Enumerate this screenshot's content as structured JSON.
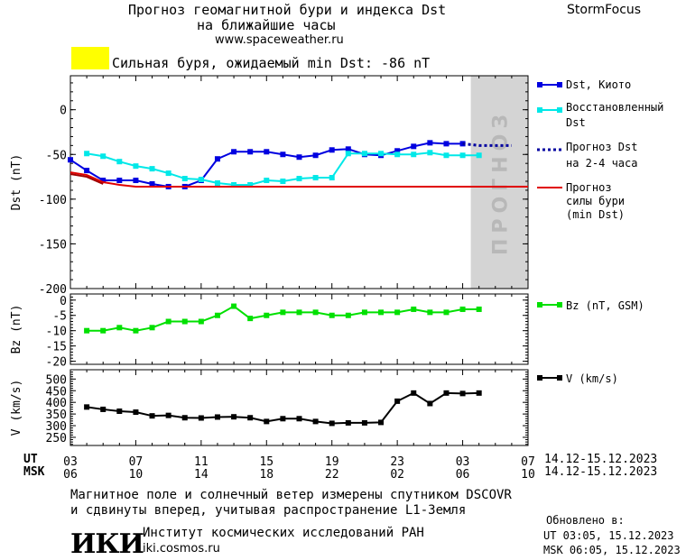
{
  "header": {
    "title_line1": "Прогноз геомагнитной бури и индекса Dst",
    "title_line2": "на ближайшие часы",
    "url": "www.spaceweather.ru",
    "brand": "StormFocus"
  },
  "storm_banner": {
    "text": "Сильная буря, ожидаемый min Dst: -86 nT",
    "color": "#ffff00"
  },
  "forecast_zone_label": "ПРОГНОЗ",
  "legend": {
    "dst_kyoto": "Dst, Киото",
    "restored_1": "Восстановленный",
    "restored_2": "Dst",
    "forecast_1": "Прогноз Dst",
    "forecast_2": "на 2-4 часа",
    "storm_1": "Прогноз",
    "storm_2": "силы бури",
    "storm_3": "(min Dst)",
    "bz": "Bz (nT, GSM)",
    "v": "V (km/s)"
  },
  "time_axis": {
    "ut_label": "UT",
    "msk_label": "MSK",
    "ut_ticks": [
      "03",
      "07",
      "11",
      "15",
      "19",
      "23",
      "03",
      "07"
    ],
    "msk_ticks": [
      "06",
      "10",
      "14",
      "18",
      "22",
      "02",
      "06",
      "10"
    ],
    "ut_range": "14.12-15.12.2023",
    "msk_range": "14.12-15.12.2023"
  },
  "footer": {
    "note_line1": "Магнитное поле и солнечный ветер измерены спутником DSCOVR",
    "note_line2": "и сдвинуты вперед, учитывая распространение L1-Земля",
    "logo_text": "ИКИ",
    "institute": "Институт космических исследований РАН",
    "institute_url": "iki.cosmos.ru",
    "updated_label": "Обновлено в:",
    "updated_ut": "UT  03:05, 15.12.2023",
    "updated_msk": "MSK 06:05, 15.12.2023"
  },
  "chart_data": [
    {
      "type": "line",
      "ylabel": "Dst (nT)",
      "ylim": [
        -200,
        38
      ],
      "yticks": [
        0,
        -50,
        -100,
        -150,
        -200
      ],
      "xlim": [
        0,
        28
      ],
      "forecast_region": [
        24.5,
        28
      ],
      "series": [
        {
          "name": "Dst, Киото",
          "color": "#0000e0",
          "x": [
            0,
            1,
            2,
            3,
            4,
            5,
            6,
            7,
            8,
            9,
            10,
            11,
            12,
            13,
            14,
            15,
            16,
            17,
            18,
            19,
            20,
            21,
            22,
            23,
            24
          ],
          "values": [
            -56,
            -68,
            -79,
            -79,
            -79,
            -83,
            -86,
            -86,
            -79,
            -55,
            -47,
            -47,
            -47,
            -50,
            -53,
            -51,
            -45,
            -44,
            -50,
            -51,
            -46,
            -41,
            -37,
            -38,
            -38
          ]
        },
        {
          "name": "Восстановленный Dst",
          "color": "#00e8e8",
          "x": [
            1,
            2,
            3,
            4,
            5,
            6,
            7,
            8,
            9,
            10,
            11,
            12,
            13,
            14,
            15,
            16,
            17,
            18,
            19,
            20,
            21,
            22,
            23,
            24,
            25
          ],
          "values": [
            -49,
            -52,
            -58,
            -63,
            -66,
            -71,
            -77,
            -78,
            -82,
            -84,
            -84,
            -79,
            -80,
            -77,
            -76,
            -76,
            -49,
            -49,
            -49,
            -50,
            -50,
            -48,
            -51,
            -51,
            -51
          ]
        },
        {
          "name": "Прогноз Dst на 2-4 часа",
          "color": "#0000a0",
          "dashed": true,
          "x": [
            24,
            25,
            26,
            27
          ],
          "values": [
            -38,
            -40,
            -40,
            -40
          ]
        },
        {
          "name": "Прогноз силы бури (min Dst)",
          "color": "#e00000",
          "x": [
            0,
            1,
            2,
            3,
            4,
            28
          ],
          "values": [
            -70,
            -73,
            -81,
            -84,
            -86,
            -86
          ]
        },
        {
          "name": "",
          "color": "#a00000",
          "x": [
            0,
            1,
            2
          ],
          "values": [
            -72,
            -75,
            -83
          ]
        }
      ]
    },
    {
      "type": "line",
      "ylabel": "Bz (nT)",
      "ylim": [
        -21,
        2
      ],
      "yticks": [
        0,
        -5,
        -10,
        -15,
        -20
      ],
      "xlim": [
        0,
        28
      ],
      "series": [
        {
          "name": "Bz (nT, GSM)",
          "color": "#00e000",
          "x": [
            1,
            2,
            3,
            4,
            5,
            6,
            7,
            8,
            9,
            10,
            11,
            12,
            13,
            14,
            15,
            16,
            17,
            18,
            19,
            20,
            21,
            22,
            23,
            24,
            25
          ],
          "values": [
            -10,
            -10,
            -9,
            -10,
            -9,
            -7,
            -7,
            -7,
            -5,
            -2,
            -6,
            -5,
            -4,
            -4,
            -4,
            -5,
            -5,
            -4,
            -4,
            -4,
            -3,
            -4,
            -4,
            -3,
            -3
          ]
        }
      ]
    },
    {
      "type": "line",
      "ylabel": "V (km/s)",
      "ylim": [
        215,
        540
      ],
      "yticks": [
        500,
        450,
        400,
        350,
        300,
        250
      ],
      "xlim": [
        0,
        28
      ],
      "series": [
        {
          "name": "V (km/s)",
          "color": "#000000",
          "x": [
            1,
            2,
            3,
            4,
            5,
            6,
            7,
            8,
            9,
            10,
            11,
            12,
            13,
            14,
            15,
            16,
            17,
            18,
            19,
            20,
            21,
            22,
            23,
            24,
            25
          ],
          "values": [
            380,
            370,
            362,
            358,
            342,
            344,
            334,
            333,
            337,
            338,
            334,
            318,
            330,
            330,
            318,
            310,
            312,
            312,
            314,
            405,
            440,
            395,
            440,
            438,
            440
          ]
        }
      ]
    }
  ]
}
